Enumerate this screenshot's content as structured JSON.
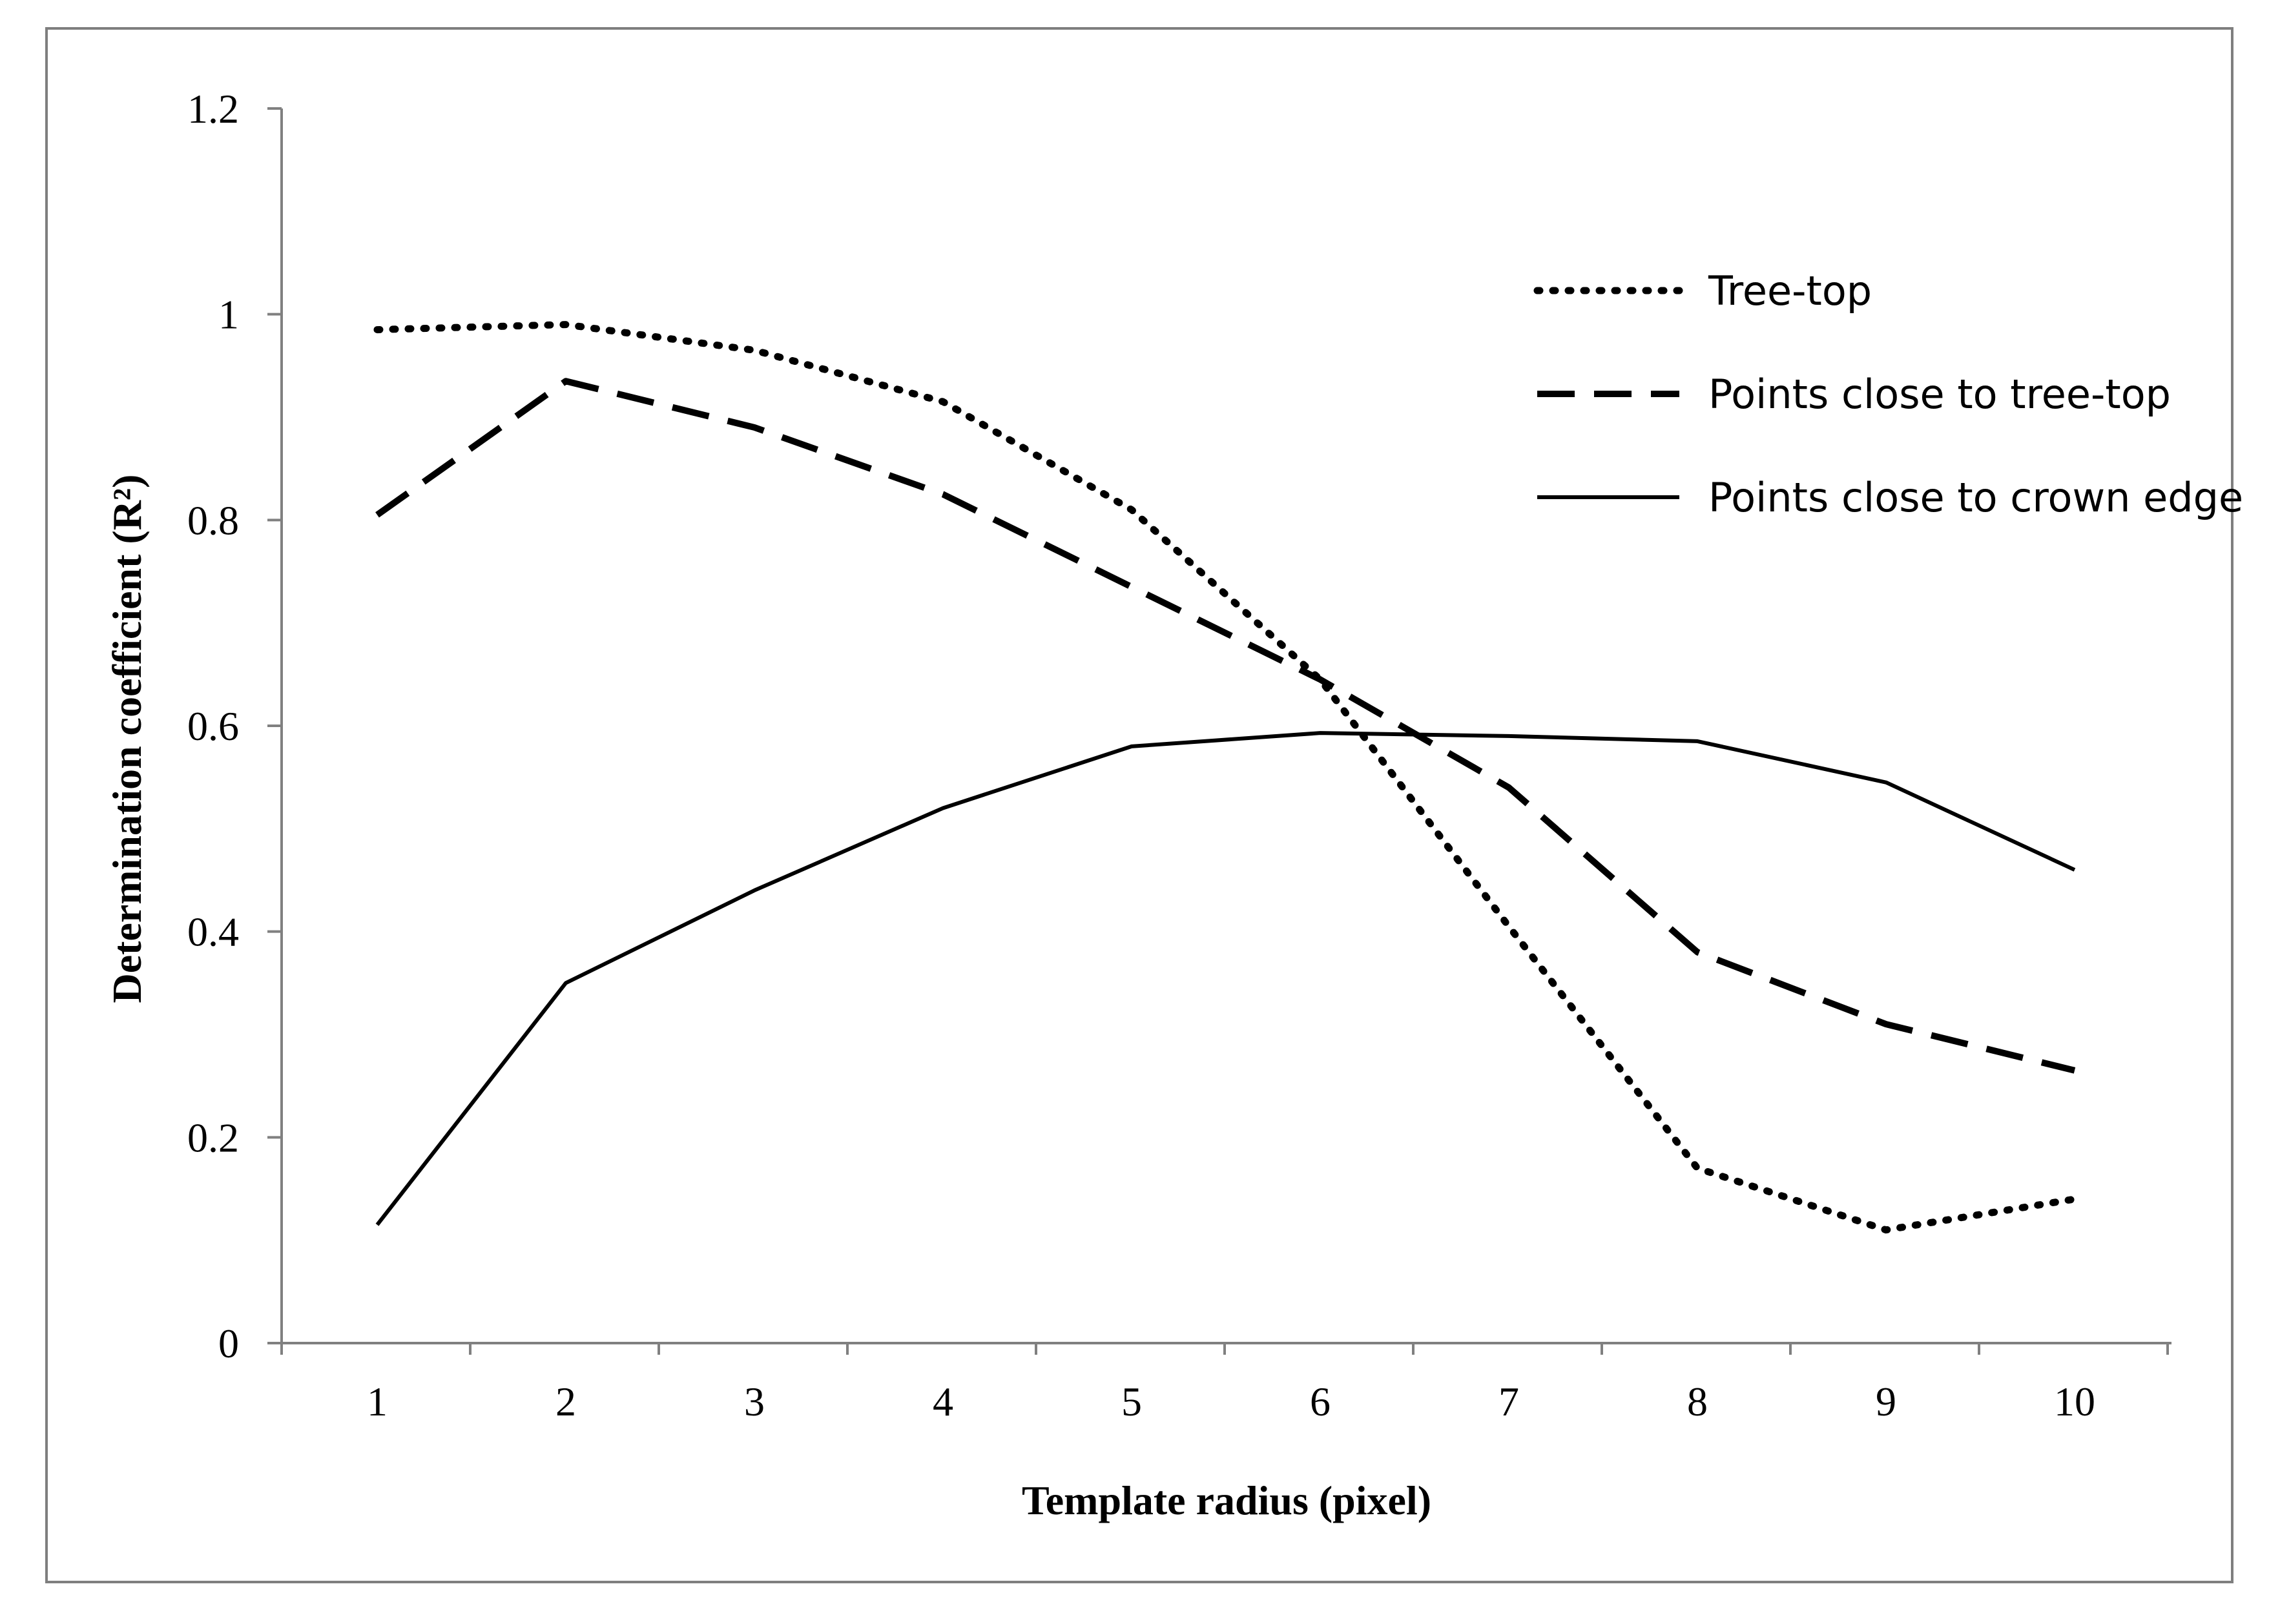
{
  "chart_data": {
    "type": "line",
    "title": "",
    "xlabel": "Template radius (pixel)",
    "ylabel": "Determination coefficient (R²)",
    "x": [
      1,
      2,
      3,
      4,
      5,
      6,
      7,
      8,
      9,
      10
    ],
    "xticks": [
      "1",
      "2",
      "3",
      "4",
      "5",
      "6",
      "7",
      "8",
      "9",
      "10"
    ],
    "ylim": [
      0,
      1.2
    ],
    "yticks": [
      "0",
      "0.2",
      "0.4",
      "0.6",
      "0.8",
      "1",
      "1.2"
    ],
    "ytick_values": [
      0,
      0.2,
      0.4,
      0.6,
      0.8,
      1.0,
      1.2
    ],
    "grid": false,
    "legend_position": "top-right",
    "series": [
      {
        "name": "Tree-top",
        "style": "dotted",
        "values": [
          0.985,
          0.99,
          0.965,
          0.915,
          0.81,
          0.645,
          0.405,
          0.17,
          0.11,
          0.14
        ]
      },
      {
        "name": "Points close to tree-top",
        "style": "dashed",
        "values": [
          0.805,
          0.935,
          0.89,
          0.825,
          0.735,
          0.645,
          0.54,
          0.38,
          0.31,
          0.265
        ]
      },
      {
        "name": "Points close to crown edge",
        "style": "solid",
        "values": [
          0.115,
          0.35,
          0.44,
          0.52,
          0.58,
          0.593,
          0.59,
          0.585,
          0.545,
          0.46
        ]
      }
    ],
    "colors": {
      "line": "#000000",
      "axis": "#808080",
      "frame": "#7f7f7f"
    }
  }
}
